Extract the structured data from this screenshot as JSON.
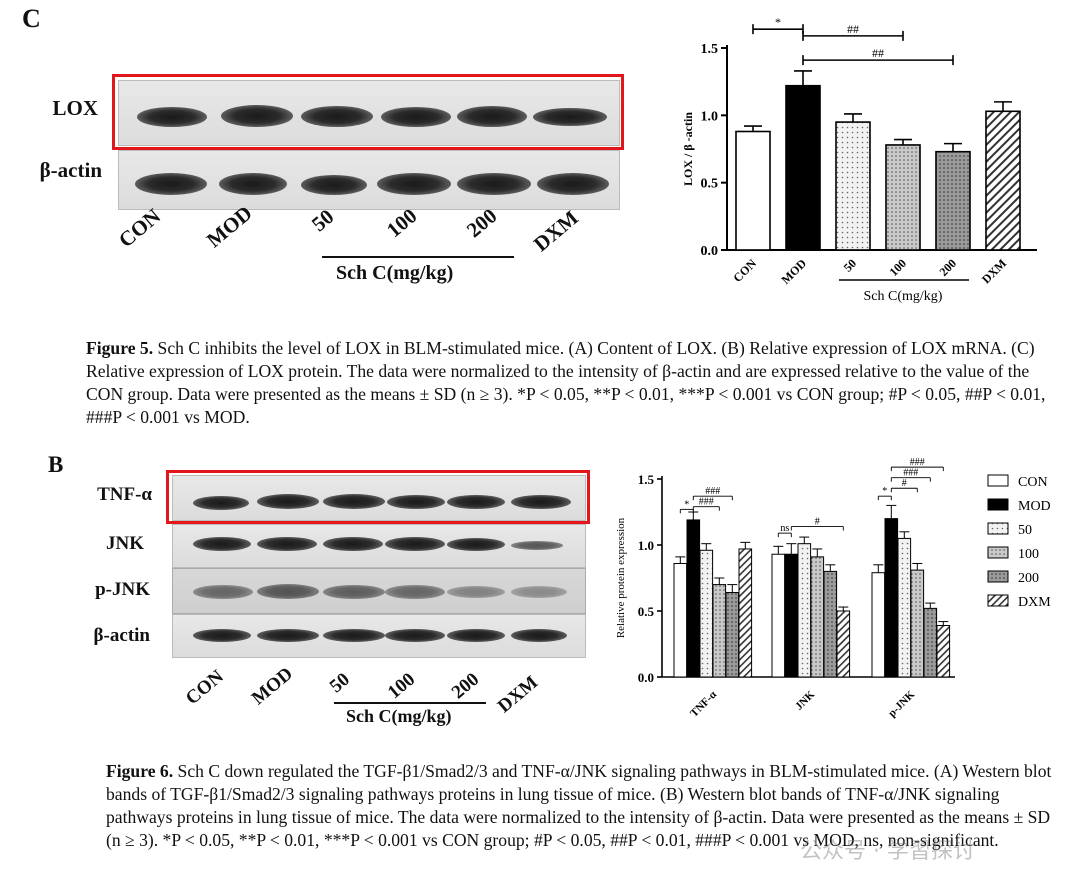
{
  "figure5": {
    "panel_label": "C",
    "band_labels": [
      "LOX",
      "β-actin"
    ],
    "lane_labels": [
      "CON",
      "MOD",
      "50",
      "100",
      "200",
      "DXM"
    ],
    "dose_group_label": "Sch C(mg/kg)",
    "caption_title": "Figure 5.",
    "caption_text": "Sch C inhibits the level of LOX in BLM-stimulated mice. (A) Content of LOX. (B) Relative expression of LOX mRNA. (C) Relative expression of LOX protein. The data were normalized to the intensity of β-actin and are expressed relative to the value of the CON group. Data were presented as the means ± SD (n ≥ 3). *P < 0.05, **P < 0.01, ***P < 0.001 vs CON group; #P < 0.05, ##P < 0.01, ###P < 0.001 vs MOD."
  },
  "figure6": {
    "panel_label": "B",
    "band_labels": [
      "TNF-α",
      "JNK",
      "p-JNK",
      "β-actin"
    ],
    "lane_labels": [
      "CON",
      "MOD",
      "50",
      "100",
      "200",
      "DXM"
    ],
    "dose_group_label": "Sch C(mg/kg)",
    "caption_title": "Figure 6.",
    "caption_text": "Sch C down regulated the TGF-β1/Smad2/3 and TNF-α/JNK signaling pathways in BLM-stimulated mice. (A) Western blot bands of TGF-β1/Smad2/3 signaling pathways proteins in lung tissue of mice. (B) Western blot bands of TNF-α/JNK signaling pathways proteins in lung tissue of mice. The data were normalized to the intensity of β-actin. Data were presented as the means ± SD (n ≥ 3). *P < 0.05, **P < 0.01, ***P < 0.001 vs CON group; #P < 0.05, ##P < 0.01, ###P < 0.001 vs MOD, ns, non-significant."
  },
  "watermark": "公众号 · 学習探讨",
  "chart_data": [
    {
      "type": "bar",
      "ylabel": "LOX / β -actin",
      "ylim": [
        0,
        1.5
      ],
      "yticks": [
        0.0,
        0.5,
        1.0,
        1.5
      ],
      "categories": [
        "CON",
        "MOD",
        "50",
        "100",
        "200",
        "DXM"
      ],
      "group_label": "Sch C(mg/kg)",
      "values": [
        0.88,
        1.22,
        0.95,
        0.78,
        0.73,
        1.03
      ],
      "errors": [
        0.04,
        0.11,
        0.06,
        0.04,
        0.06,
        0.07
      ],
      "fills": [
        "white",
        "black",
        "dots-light",
        "dots-mid",
        "dots-dark",
        "stripes"
      ],
      "annotations": [
        {
          "label": "*",
          "from": "CON",
          "to": "MOD"
        },
        {
          "label": "##",
          "from": "MOD",
          "to": "100"
        },
        {
          "label": "##",
          "from": "MOD",
          "to": "200"
        }
      ]
    },
    {
      "type": "bar",
      "ylabel": "Relative protein expression",
      "ylim": [
        0,
        1.5
      ],
      "yticks": [
        0.0,
        0.5,
        1.0,
        1.5
      ],
      "categories": [
        "TNF-α",
        "JNK",
        "p-JNK"
      ],
      "series": [
        {
          "name": "CON",
          "fill": "white",
          "values": [
            0.86,
            0.93,
            0.79
          ],
          "errors": [
            0.05,
            0.06,
            0.06
          ]
        },
        {
          "name": "MOD",
          "fill": "black",
          "values": [
            1.19,
            0.93,
            1.2
          ],
          "errors": [
            0.06,
            0.08,
            0.1
          ]
        },
        {
          "name": "50",
          "fill": "dots-light",
          "values": [
            0.96,
            1.01,
            1.05
          ],
          "errors": [
            0.05,
            0.05,
            0.05
          ]
        },
        {
          "name": "100",
          "fill": "dots-mid",
          "values": [
            0.7,
            0.91,
            0.81
          ],
          "errors": [
            0.05,
            0.06,
            0.05
          ]
        },
        {
          "name": "200",
          "fill": "dots-dark",
          "values": [
            0.64,
            0.8,
            0.52
          ],
          "errors": [
            0.06,
            0.05,
            0.04
          ]
        },
        {
          "name": "DXM",
          "fill": "stripes",
          "values": [
            0.97,
            0.5,
            0.39
          ],
          "errors": [
            0.05,
            0.03,
            0.03
          ]
        }
      ],
      "annotations": [
        {
          "group": "TNF-α",
          "label": "*",
          "from": "CON",
          "to": "MOD"
        },
        {
          "group": "TNF-α",
          "label": "###",
          "from": "MOD",
          "to": "100"
        },
        {
          "group": "TNF-α",
          "label": "###",
          "from": "MOD",
          "to": "200"
        },
        {
          "group": "JNK",
          "label": "ns",
          "from": "CON",
          "to": "MOD"
        },
        {
          "group": "JNK",
          "label": "#",
          "from": "MOD",
          "to": "DXM"
        },
        {
          "group": "p-JNK",
          "label": "*",
          "from": "CON",
          "to": "MOD"
        },
        {
          "group": "p-JNK",
          "label": "#",
          "from": "MOD",
          "to": "100"
        },
        {
          "group": "p-JNK",
          "label": "###",
          "from": "MOD",
          "to": "200"
        },
        {
          "group": "p-JNK",
          "label": "###",
          "from": "MOD",
          "to": "DXM"
        }
      ]
    }
  ]
}
